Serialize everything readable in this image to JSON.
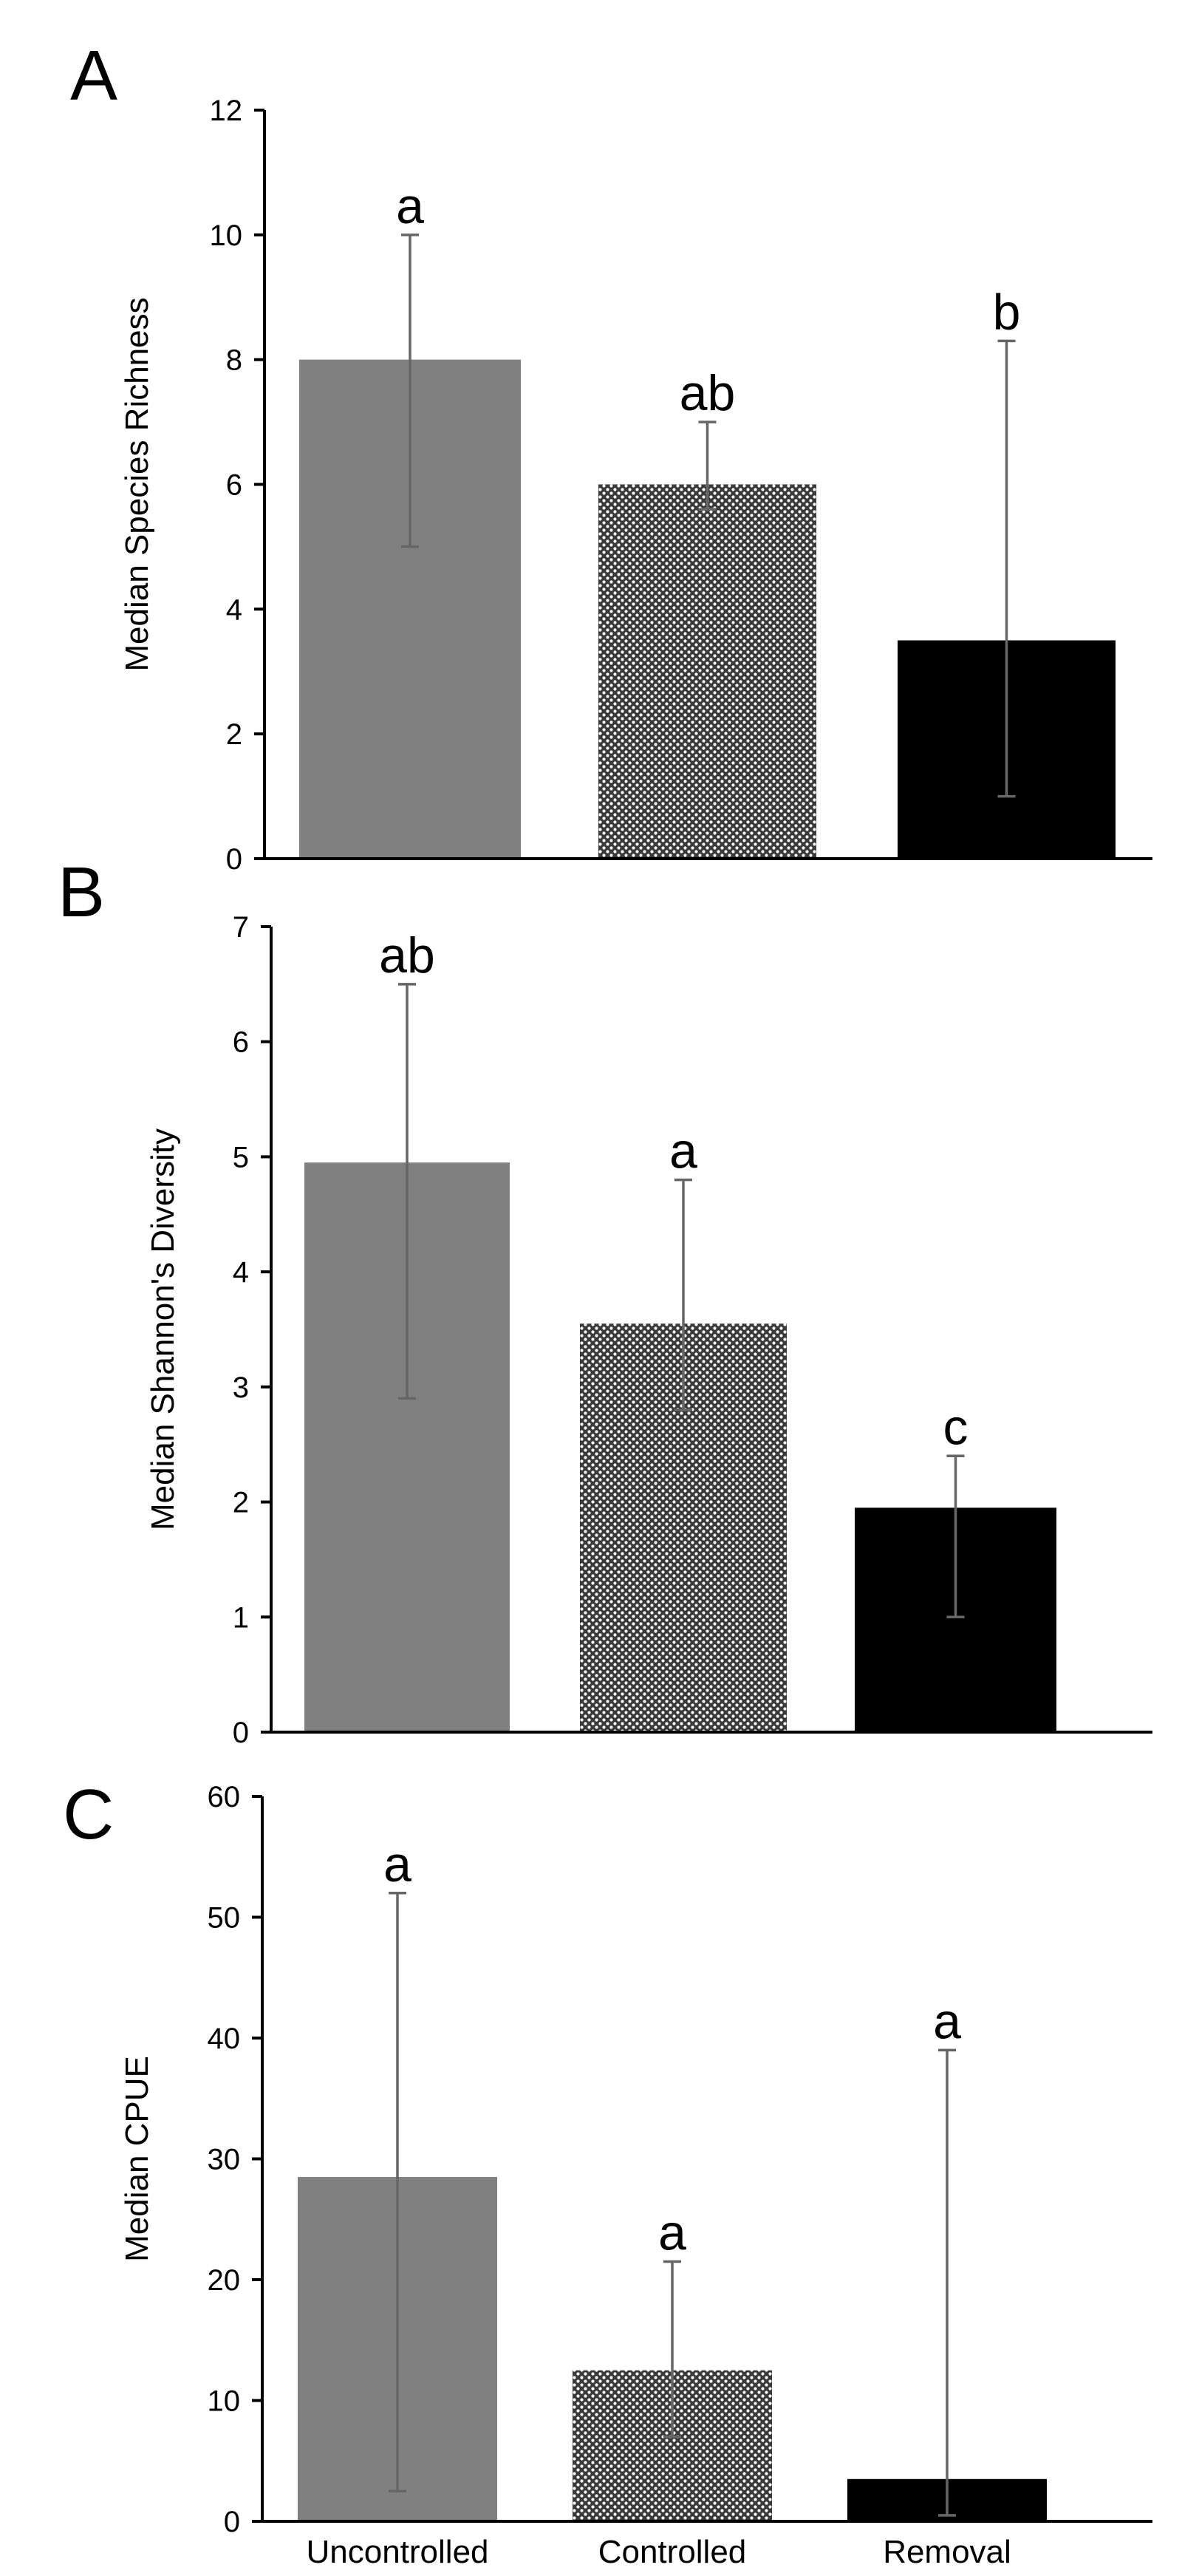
{
  "chart_data": [
    {
      "type": "bar",
      "panel_label": "A",
      "ylabel": "Median Species Richness",
      "ylim": [
        0,
        12
      ],
      "yticks": [
        0,
        2,
        4,
        6,
        8,
        10,
        12
      ],
      "categories": [
        "Uncontrolled",
        "Controlled",
        "Removal"
      ],
      "values": [
        8,
        6,
        3.5
      ],
      "error_low": [
        5,
        5.6,
        1
      ],
      "error_high": [
        10,
        7,
        8.3
      ],
      "significance": [
        "a",
        "ab",
        "b"
      ]
    },
    {
      "type": "bar",
      "panel_label": "B",
      "ylabel": "Median Shannon's Diversity",
      "ylim": [
        0,
        7
      ],
      "yticks": [
        0,
        1,
        2,
        3,
        4,
        5,
        6,
        7
      ],
      "categories": [
        "Uncontrolled",
        "Controlled",
        "Removal"
      ],
      "values": [
        4.95,
        3.55,
        1.95
      ],
      "error_low": [
        2.9,
        2.8,
        1
      ],
      "error_high": [
        6.5,
        4.8,
        2.4
      ],
      "significance": [
        "ab",
        "a",
        "c"
      ]
    },
    {
      "type": "bar",
      "panel_label": "C",
      "ylabel": "Median CPUE",
      "ylim": [
        0,
        60
      ],
      "yticks": [
        0,
        10,
        20,
        30,
        40,
        50,
        60
      ],
      "categories": [
        "Uncontrolled",
        "Controlled",
        "Removal"
      ],
      "values": [
        28.5,
        12.5,
        3.5
      ],
      "error_low": [
        2.5,
        7,
        0.5
      ],
      "error_high": [
        52,
        21.5,
        39
      ],
      "significance": [
        "a",
        "a",
        "a"
      ],
      "show_category_labels": true
    }
  ],
  "colors": {
    "uncontrolled": "#808080",
    "controlled_dots": "#ffffff",
    "controlled_bg": "#3a3a3a",
    "removal": "#000000",
    "error_bar": "#666666",
    "axis": "#000000"
  }
}
